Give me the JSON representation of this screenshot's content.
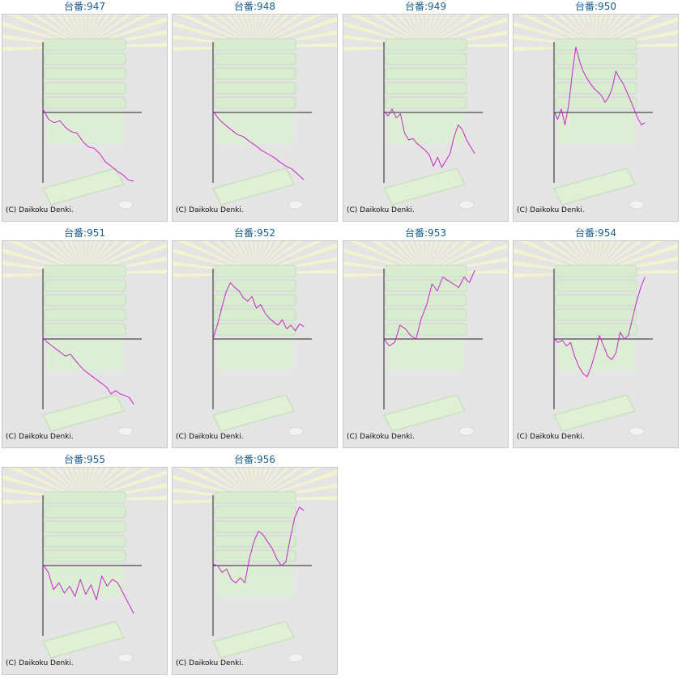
{
  "colors": {
    "line": "#cc22cc",
    "axis": "#222222",
    "title": "#1a5d8f",
    "panel_bg": "#e4e4e4"
  },
  "charts": [
    {
      "title": "台番:947",
      "copyright": "(C) Daikoku Denki."
    },
    {
      "title": "台番:948",
      "copyright": "(C) Daikoku Denki."
    },
    {
      "title": "台番:949",
      "copyright": "(C) Daikoku Denki."
    },
    {
      "title": "台番:950",
      "copyright": "(C) Daikoku Denki."
    },
    {
      "title": "台番:951",
      "copyright": "(C) Daikoku Denki."
    },
    {
      "title": "台番:952",
      "copyright": "(C) Daikoku Denki."
    },
    {
      "title": "台番:953",
      "copyright": "(C) Daikoku Denki."
    },
    {
      "title": "台番:954",
      "copyright": "(C) Daikoku Denki."
    },
    {
      "title": "台番:955",
      "copyright": "(C) Daikoku Denki."
    },
    {
      "title": "台番:956",
      "copyright": "(C) Daikoku Denki."
    }
  ],
  "chart_data": [
    {
      "type": "line",
      "title": "台番:947",
      "series": [
        {
          "values": [
            0.05,
            -0.1,
            -0.15,
            -0.12,
            -0.22,
            -0.28,
            -0.3,
            -0.42,
            -0.5,
            -0.52,
            -0.6,
            -0.72,
            -0.78,
            -0.85,
            -0.9,
            -0.98,
            -1.0
          ]
        }
      ]
    },
    {
      "type": "line",
      "title": "台番:948",
      "series": [
        {
          "values": [
            0.02,
            -0.1,
            -0.18,
            -0.25,
            -0.32,
            -0.35,
            -0.42,
            -0.48,
            -0.55,
            -0.6,
            -0.65,
            -0.72,
            -0.78,
            -0.82,
            -0.9,
            -0.98
          ]
        }
      ]
    },
    {
      "type": "line",
      "title": "台番:949",
      "series": [
        {
          "values": [
            0.02,
            -0.05,
            0.05,
            -0.08,
            -0.02,
            -0.3,
            -0.4,
            -0.38,
            -0.45,
            -0.5,
            -0.55,
            -0.62,
            -0.78,
            -0.65,
            -0.8,
            -0.7,
            -0.6,
            -0.35,
            -0.18,
            -0.25,
            -0.4,
            -0.5,
            -0.6
          ]
        }
      ]
    },
    {
      "type": "line",
      "title": "台番:950",
      "series": [
        {
          "values": [
            0.02,
            -0.1,
            0.05,
            -0.18,
            0.1,
            0.55,
            0.95,
            0.75,
            0.6,
            0.5,
            0.42,
            0.35,
            0.3,
            0.25,
            0.15,
            0.22,
            0.35,
            0.6,
            0.5,
            0.42,
            0.3,
            0.18,
            0.05,
            -0.08,
            -0.18,
            -0.15
          ]
        }
      ]
    },
    {
      "type": "line",
      "title": "台番:951",
      "series": [
        {
          "values": [
            0.02,
            -0.05,
            -0.1,
            -0.15,
            -0.2,
            -0.25,
            -0.22,
            -0.3,
            -0.38,
            -0.45,
            -0.5,
            -0.55,
            -0.6,
            -0.65,
            -0.7,
            -0.8,
            -0.75,
            -0.8,
            -0.82,
            -0.85,
            -0.95
          ]
        }
      ]
    },
    {
      "type": "line",
      "title": "台番:952",
      "series": [
        {
          "values": [
            0.0,
            0.2,
            0.45,
            0.68,
            0.82,
            0.75,
            0.7,
            0.6,
            0.55,
            0.62,
            0.45,
            0.5,
            0.38,
            0.3,
            0.25,
            0.2,
            0.28,
            0.15,
            0.2,
            0.12,
            0.22,
            0.18
          ]
        }
      ]
    },
    {
      "type": "line",
      "title": "台番:953",
      "series": [
        {
          "values": [
            0.0,
            -0.1,
            -0.05,
            0.2,
            0.15,
            0.05,
            0.0,
            0.3,
            0.5,
            0.8,
            0.7,
            0.9,
            0.85,
            0.8,
            0.75,
            0.9,
            0.82,
            1.0
          ]
        }
      ]
    },
    {
      "type": "line",
      "title": "台番:954",
      "series": [
        {
          "values": [
            0.0,
            -0.05,
            -0.02,
            -0.1,
            -0.05,
            -0.25,
            -0.4,
            -0.5,
            -0.55,
            -0.4,
            -0.2,
            0.05,
            -0.1,
            -0.25,
            -0.3,
            -0.2,
            0.1,
            0.0,
            0.05,
            0.3,
            0.55,
            0.75,
            0.9
          ]
        }
      ]
    },
    {
      "type": "line",
      "title": "台番:955",
      "series": [
        {
          "values": [
            0.02,
            -0.1,
            -0.35,
            -0.25,
            -0.4,
            -0.3,
            -0.45,
            -0.2,
            -0.42,
            -0.28,
            -0.5,
            -0.15,
            -0.3,
            -0.2,
            -0.25,
            -0.4,
            -0.55,
            -0.7
          ]
        }
      ]
    },
    {
      "type": "line",
      "title": "台番:956",
      "series": [
        {
          "values": [
            0.02,
            0.0,
            -0.1,
            -0.05,
            -0.2,
            -0.25,
            -0.18,
            -0.25,
            0.1,
            0.35,
            0.5,
            0.45,
            0.35,
            0.25,
            0.1,
            0.0,
            0.05,
            0.4,
            0.7,
            0.85,
            0.8
          ]
        }
      ]
    }
  ]
}
